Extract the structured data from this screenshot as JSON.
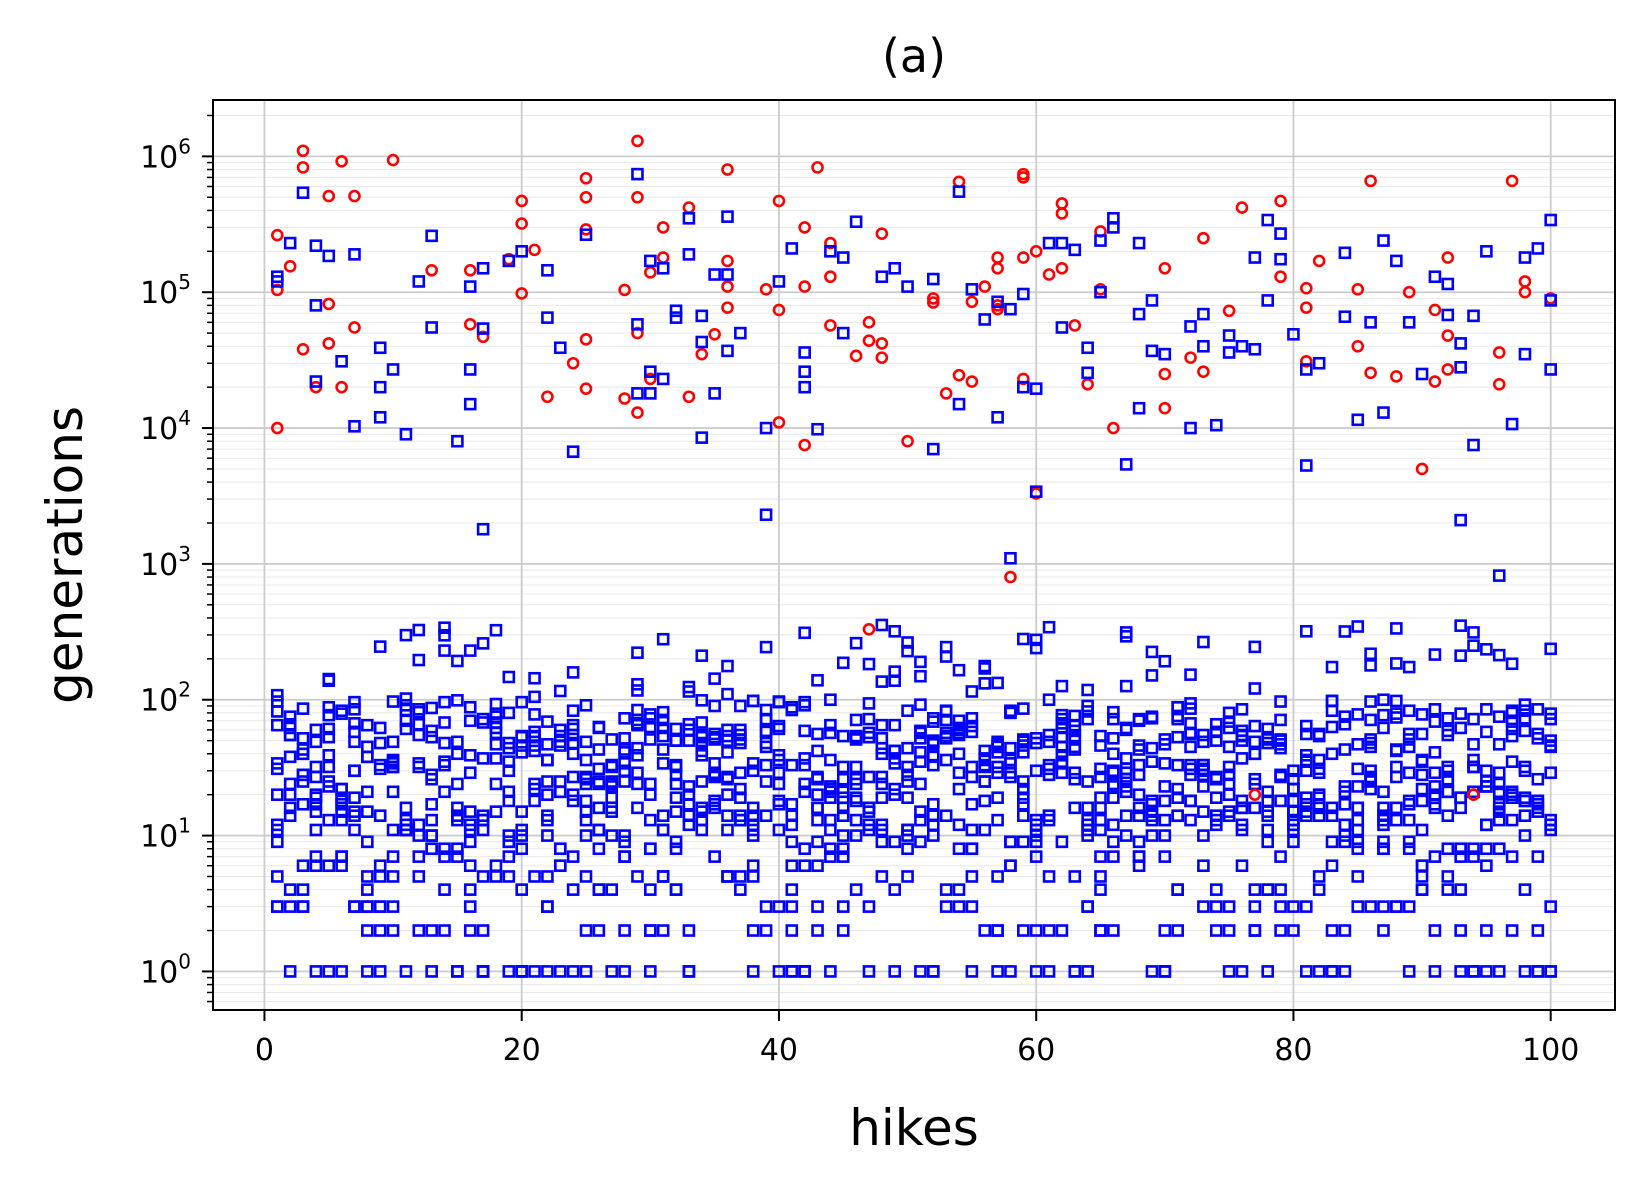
{
  "chart_data": {
    "type": "scatter",
    "title": "(a)",
    "xlabel": "hikes",
    "ylabel": "generations",
    "xlim": [
      -4,
      105
    ],
    "ylim": [
      0.52,
      2600000
    ],
    "x_scale": "linear",
    "y_scale": "log",
    "x_ticks": [
      0,
      20,
      40,
      60,
      80,
      100
    ],
    "y_ticks": [
      {
        "value": 1,
        "base": "10",
        "exp": "0"
      },
      {
        "value": 10,
        "base": "10",
        "exp": "1"
      },
      {
        "value": 100,
        "base": "10",
        "exp": "2"
      },
      {
        "value": 1000,
        "base": "10",
        "exp": "3"
      },
      {
        "value": 10000,
        "base": "10",
        "exp": "4"
      },
      {
        "value": 100000,
        "base": "10",
        "exp": "5"
      },
      {
        "value": 1000000,
        "base": "10",
        "exp": "6"
      }
    ],
    "grid": true,
    "legend": "none",
    "colors": {
      "circle_series": "#ff0000",
      "square_series": "#0000ff",
      "grid": "#cccccc"
    },
    "series": [
      {
        "marker": "circle",
        "color": "#ff0000",
        "points": [
          [
            1,
            263000
          ],
          [
            1,
            104000
          ],
          [
            1,
            10000
          ],
          [
            2,
            155000
          ],
          [
            3,
            1100000
          ],
          [
            3,
            830000
          ],
          [
            3,
            38000
          ],
          [
            4,
            20000
          ],
          [
            5,
            510000
          ],
          [
            5,
            82000
          ],
          [
            5,
            42000
          ],
          [
            6,
            920000
          ],
          [
            6,
            20000
          ],
          [
            7,
            510000
          ],
          [
            7,
            55000
          ],
          [
            10,
            940000
          ],
          [
            13,
            145000
          ],
          [
            16,
            145000
          ],
          [
            16,
            58000
          ],
          [
            17,
            47000
          ],
          [
            19,
            175000
          ],
          [
            20,
            470000
          ],
          [
            20,
            320000
          ],
          [
            20,
            98000
          ],
          [
            21,
            205000
          ],
          [
            22,
            17000
          ],
          [
            24,
            30000
          ],
          [
            25,
            690000
          ],
          [
            25,
            500000
          ],
          [
            25,
            290000
          ],
          [
            25,
            45000
          ],
          [
            25,
            19500
          ],
          [
            28,
            104000
          ],
          [
            28,
            16500
          ],
          [
            29,
            1300000
          ],
          [
            29,
            500000
          ],
          [
            29,
            50000
          ],
          [
            29,
            13000
          ],
          [
            30,
            140000
          ],
          [
            30,
            23000
          ],
          [
            31,
            300000
          ],
          [
            31,
            180000
          ],
          [
            33,
            420000
          ],
          [
            33,
            17000
          ],
          [
            34,
            35000
          ],
          [
            35,
            49000
          ],
          [
            36,
            800000
          ],
          [
            36,
            170000
          ],
          [
            36,
            110000
          ],
          [
            36,
            77000
          ],
          [
            39,
            105000
          ],
          [
            40,
            470000
          ],
          [
            40,
            74000
          ],
          [
            40,
            11000
          ],
          [
            42,
            300000
          ],
          [
            42,
            110000
          ],
          [
            42,
            7500
          ],
          [
            43,
            830000
          ],
          [
            44,
            230000
          ],
          [
            44,
            130000
          ],
          [
            44,
            57000
          ],
          [
            46,
            34000
          ],
          [
            47,
            60000
          ],
          [
            47,
            44000
          ],
          [
            47,
            330
          ],
          [
            48,
            270000
          ],
          [
            48,
            42000
          ],
          [
            48,
            33000
          ],
          [
            50,
            8000
          ],
          [
            52,
            90000
          ],
          [
            52,
            84000
          ],
          [
            53,
            18000
          ],
          [
            54,
            650000
          ],
          [
            54,
            24500
          ],
          [
            55,
            85000
          ],
          [
            55,
            22000
          ],
          [
            56,
            110000
          ],
          [
            57,
            180000
          ],
          [
            57,
            150000
          ],
          [
            57,
            80000
          ],
          [
            57,
            75000
          ],
          [
            58,
            800
          ],
          [
            59,
            740000
          ],
          [
            59,
            700000
          ],
          [
            59,
            180000
          ],
          [
            59,
            23000
          ],
          [
            60,
            200000
          ],
          [
            60,
            3300
          ],
          [
            61,
            135000
          ],
          [
            62,
            450000
          ],
          [
            62,
            380000
          ],
          [
            62,
            150000
          ],
          [
            63,
            57000
          ],
          [
            64,
            21000
          ],
          [
            65,
            280000
          ],
          [
            65,
            105000
          ],
          [
            66,
            10000
          ],
          [
            70,
            150000
          ],
          [
            70,
            25000
          ],
          [
            70,
            14000
          ],
          [
            72,
            33000
          ],
          [
            73,
            250000
          ],
          [
            73,
            26000
          ],
          [
            75,
            73000
          ],
          [
            76,
            420000
          ],
          [
            77,
            20
          ],
          [
            79,
            470000
          ],
          [
            79,
            130000
          ],
          [
            81,
            107000
          ],
          [
            81,
            77000
          ],
          [
            81,
            31000
          ],
          [
            82,
            170000
          ],
          [
            85,
            105000
          ],
          [
            85,
            40000
          ],
          [
            86,
            660000
          ],
          [
            86,
            25500
          ],
          [
            88,
            24000
          ],
          [
            89,
            100000
          ],
          [
            90,
            5000
          ],
          [
            91,
            74000
          ],
          [
            91,
            22000
          ],
          [
            92,
            180000
          ],
          [
            92,
            48000
          ],
          [
            92,
            27000
          ],
          [
            94,
            20
          ],
          [
            96,
            36000
          ],
          [
            96,
            21000
          ],
          [
            97,
            660000
          ],
          [
            98,
            120000
          ],
          [
            98,
            100000
          ],
          [
            100,
            90000
          ]
        ]
      },
      {
        "marker": "square",
        "color": "#0000ff",
        "points": [
          [
            1,
            130000
          ],
          [
            1,
            120000
          ],
          [
            2,
            230000
          ],
          [
            3,
            540000
          ],
          [
            4,
            220000
          ],
          [
            4,
            80000
          ],
          [
            4,
            22000
          ],
          [
            5,
            185000
          ],
          [
            6,
            31000
          ],
          [
            7,
            190000
          ],
          [
            7,
            10300
          ],
          [
            9,
            39000
          ],
          [
            9,
            20000
          ],
          [
            9,
            12000
          ],
          [
            10,
            27000
          ],
          [
            11,
            9000
          ],
          [
            12,
            120000
          ],
          [
            13,
            260000
          ],
          [
            13,
            55000
          ],
          [
            15,
            8000
          ],
          [
            16,
            110000
          ],
          [
            16,
            27000
          ],
          [
            16,
            15000
          ],
          [
            17,
            150000
          ],
          [
            17,
            54000
          ],
          [
            17,
            1800
          ],
          [
            19,
            170000
          ],
          [
            20,
            200000
          ],
          [
            22,
            145000
          ],
          [
            22,
            65000
          ],
          [
            23,
            39000
          ],
          [
            24,
            6700
          ],
          [
            25,
            265000
          ],
          [
            29,
            740000
          ],
          [
            29,
            58000
          ],
          [
            29,
            18000
          ],
          [
            30,
            170000
          ],
          [
            30,
            26000
          ],
          [
            30,
            18000
          ],
          [
            31,
            23000
          ],
          [
            31,
            150000
          ],
          [
            32,
            73000
          ],
          [
            32,
            65000
          ],
          [
            33,
            350000
          ],
          [
            33,
            190000
          ],
          [
            34,
            8500
          ],
          [
            34,
            43000
          ],
          [
            34,
            67000
          ],
          [
            35,
            135000
          ],
          [
            35,
            18000
          ],
          [
            36,
            360000
          ],
          [
            36,
            135000
          ],
          [
            36,
            37000
          ],
          [
            37,
            50000
          ],
          [
            39,
            10000
          ],
          [
            39,
            2300
          ],
          [
            40,
            120000
          ],
          [
            41,
            210000
          ],
          [
            42,
            36000
          ],
          [
            42,
            26000
          ],
          [
            42,
            20000
          ],
          [
            43,
            9800
          ],
          [
            44,
            200000
          ],
          [
            45,
            180000
          ],
          [
            45,
            50000
          ],
          [
            46,
            330000
          ],
          [
            48,
            130000
          ],
          [
            49,
            150000
          ],
          [
            50,
            110000
          ],
          [
            52,
            125000
          ],
          [
            52,
            7000
          ],
          [
            54,
            550000
          ],
          [
            54,
            15000
          ],
          [
            55,
            105000
          ],
          [
            56,
            63000
          ],
          [
            57,
            85000
          ],
          [
            57,
            12000
          ],
          [
            58,
            75000
          ],
          [
            58,
            1100
          ],
          [
            59,
            97000
          ],
          [
            59,
            20000
          ],
          [
            60,
            19500
          ],
          [
            60,
            3400
          ],
          [
            61,
            230000
          ],
          [
            62,
            230000
          ],
          [
            62,
            55000
          ],
          [
            63,
            205000
          ],
          [
            64,
            39000
          ],
          [
            64,
            25500
          ],
          [
            65,
            240000
          ],
          [
            65,
            100000
          ],
          [
            66,
            350000
          ],
          [
            66,
            300000
          ],
          [
            67,
            5400
          ],
          [
            68,
            230000
          ],
          [
            68,
            69000
          ],
          [
            68,
            14000
          ],
          [
            69,
            87000
          ],
          [
            69,
            37000
          ],
          [
            70,
            35000
          ],
          [
            72,
            56000
          ],
          [
            72,
            10000
          ],
          [
            73,
            69000
          ],
          [
            73,
            40000
          ],
          [
            74,
            10500
          ],
          [
            75,
            48000
          ],
          [
            75,
            36000
          ],
          [
            76,
            40000
          ],
          [
            77,
            180000
          ],
          [
            77,
            38000
          ],
          [
            78,
            340000
          ],
          [
            78,
            87000
          ],
          [
            79,
            270000
          ],
          [
            79,
            175000
          ],
          [
            80,
            49000
          ],
          [
            81,
            27000
          ],
          [
            81,
            5300
          ],
          [
            82,
            30000
          ],
          [
            84,
            195000
          ],
          [
            84,
            66000
          ],
          [
            85,
            11500
          ],
          [
            86,
            60000
          ],
          [
            87,
            240000
          ],
          [
            87,
            13000
          ],
          [
            88,
            170000
          ],
          [
            89,
            60000
          ],
          [
            90,
            25000
          ],
          [
            91,
            130000
          ],
          [
            92,
            115000
          ],
          [
            92,
            68000
          ],
          [
            93,
            42000
          ],
          [
            93,
            28000
          ],
          [
            93,
            2100
          ],
          [
            94,
            67000
          ],
          [
            94,
            7500
          ],
          [
            95,
            200000
          ],
          [
            96,
            820
          ],
          [
            97,
            10700
          ],
          [
            98,
            180000
          ],
          [
            98,
            35000
          ],
          [
            99,
            210000
          ],
          [
            100,
            340000
          ],
          [
            100,
            87000
          ],
          [
            100,
            27000
          ]
        ]
      }
    ],
    "low_cluster": {
      "marker": "square",
      "color": "#0000ff",
      "x_range": [
        1,
        100
      ],
      "points_per_hike": 13,
      "y_range": [
        1,
        400
      ],
      "modal_band": [
        10,
        100
      ],
      "seed": 7
    }
  }
}
